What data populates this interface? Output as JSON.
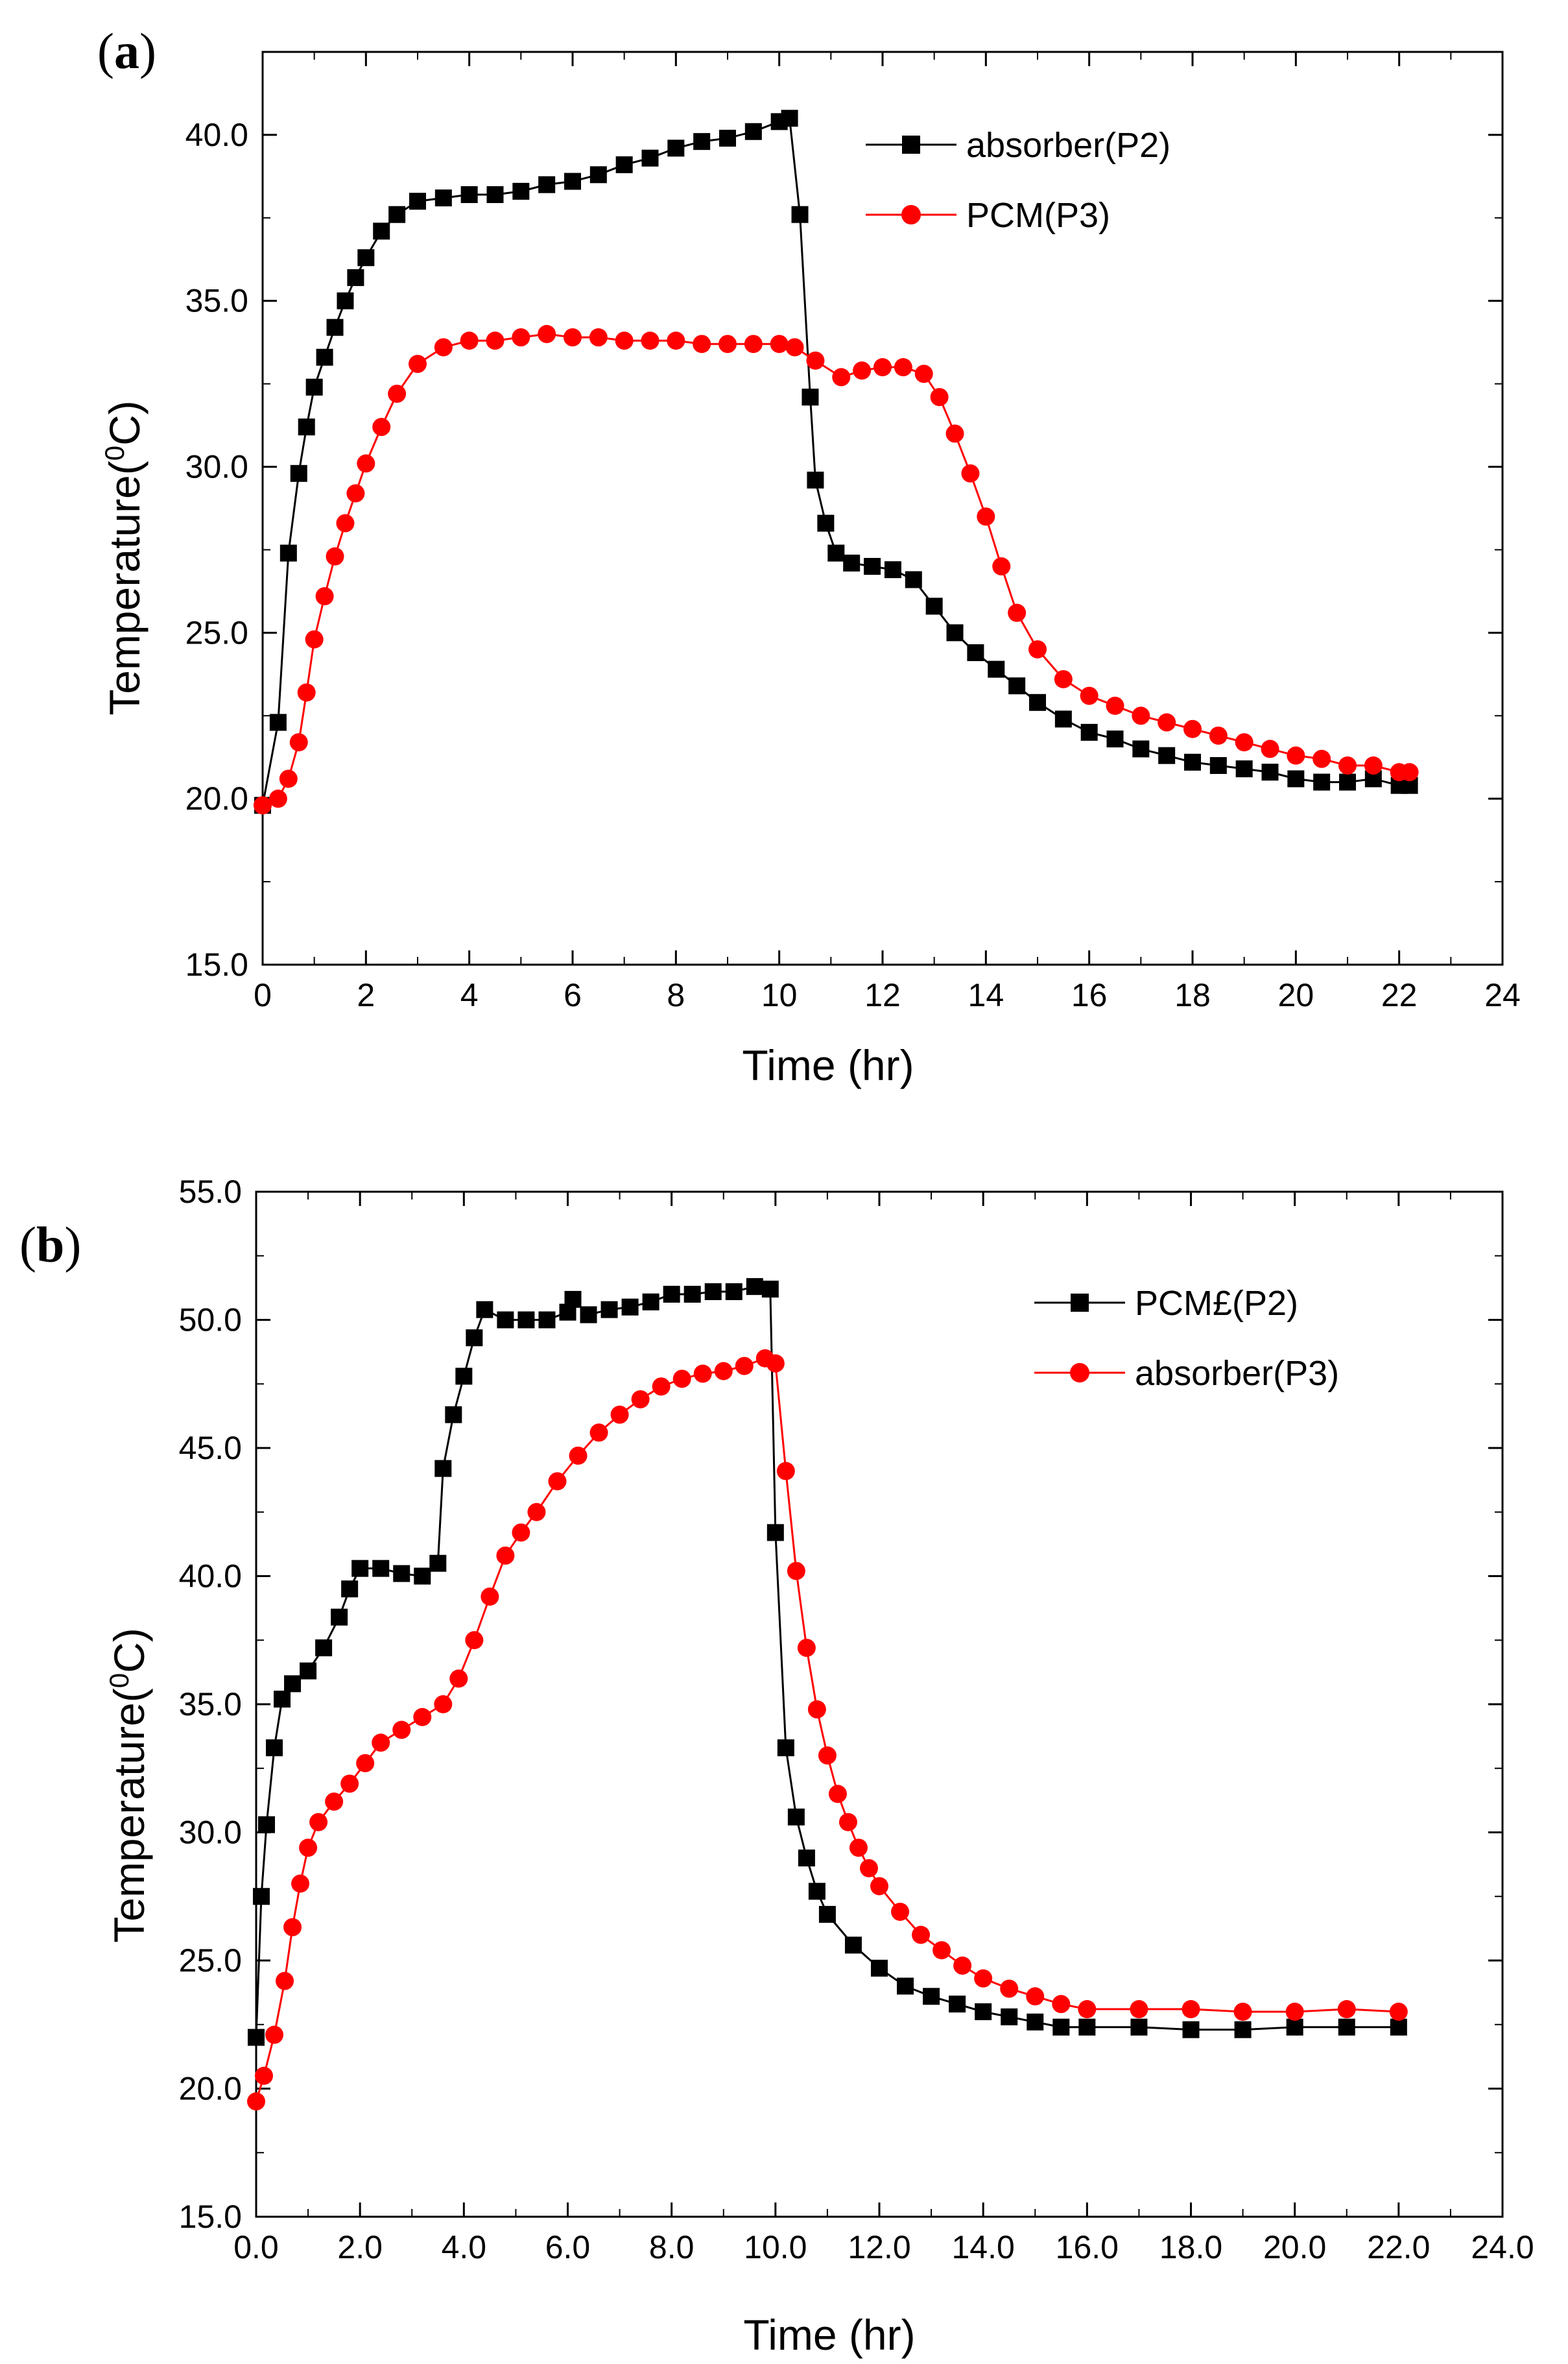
{
  "figure": {
    "colors": {
      "black_series": "#000000",
      "red_series": "#ff0000",
      "axes": "#000000",
      "background": "#ffffff"
    }
  },
  "chart_data": [
    {
      "panel_label": "a",
      "type": "line",
      "markers": [
        "square",
        "circle"
      ],
      "xlabel": "Time (hr)",
      "ylabel": "Temperature(0C)",
      "ylabel_parts": {
        "pre": "Temperature(",
        "sup": "0",
        "post": "C)"
      },
      "xlim": [
        0,
        24
      ],
      "ylim": [
        15,
        42.5
      ],
      "xticks": [
        0,
        2,
        4,
        6,
        8,
        10,
        12,
        14,
        16,
        18,
        20,
        22,
        24
      ],
      "xtick_labels": [
        "0",
        "2",
        "4",
        "6",
        "8",
        "10",
        "12",
        "14",
        "16",
        "18",
        "20",
        "22",
        "24"
      ],
      "yticks": [
        15,
        20,
        25,
        30,
        35,
        40
      ],
      "ytick_labels": [
        "15.0",
        "20.0",
        "25.0",
        "30.0",
        "35.0",
        "40.0"
      ],
      "grid": false,
      "legend_position": "top-right",
      "series": [
        {
          "name": "absorber(P2)",
          "color": "#000000",
          "marker": "square",
          "points": [
            [
              0,
              19.8
            ],
            [
              0.3,
              22.3
            ],
            [
              0.5,
              27.4
            ],
            [
              0.7,
              29.8
            ],
            [
              0.85,
              31.2
            ],
            [
              1.0,
              32.4
            ],
            [
              1.2,
              33.3
            ],
            [
              1.4,
              34.2
            ],
            [
              1.6,
              35
            ],
            [
              1.8,
              35.7
            ],
            [
              2.0,
              36.3
            ],
            [
              2.3,
              37.1
            ],
            [
              2.6,
              37.6
            ],
            [
              3.0,
              38
            ],
            [
              3.5,
              38.1
            ],
            [
              4.0,
              38.2
            ],
            [
              4.5,
              38.2
            ],
            [
              5.0,
              38.3
            ],
            [
              5.5,
              38.5
            ],
            [
              6.0,
              38.6
            ],
            [
              6.5,
              38.8
            ],
            [
              7.0,
              39.1
            ],
            [
              7.5,
              39.3
            ],
            [
              8.0,
              39.6
            ],
            [
              8.5,
              39.8
            ],
            [
              9.0,
              39.9
            ],
            [
              9.5,
              40.1
            ],
            [
              10.0,
              40.4
            ],
            [
              10.2,
              40.5
            ],
            [
              10.4,
              37.6
            ],
            [
              10.6,
              32.1
            ],
            [
              10.7,
              29.6
            ],
            [
              10.9,
              28.3
            ],
            [
              11.1,
              27.4
            ],
            [
              11.4,
              27.1
            ],
            [
              11.8,
              27.0
            ],
            [
              12.2,
              26.9
            ],
            [
              12.6,
              26.6
            ],
            [
              13.0,
              25.8
            ],
            [
              13.4,
              25.0
            ],
            [
              13.8,
              24.4
            ],
            [
              14.2,
              23.9
            ],
            [
              14.6,
              23.4
            ],
            [
              15.0,
              22.9
            ],
            [
              15.5,
              22.4
            ],
            [
              16.0,
              22.0
            ],
            [
              16.5,
              21.8
            ],
            [
              17.0,
              21.5
            ],
            [
              17.5,
              21.3
            ],
            [
              18.0,
              21.1
            ],
            [
              18.5,
              21.0
            ],
            [
              19.0,
              20.9
            ],
            [
              19.5,
              20.8
            ],
            [
              20.0,
              20.6
            ],
            [
              20.5,
              20.5
            ],
            [
              21.0,
              20.5
            ],
            [
              21.5,
              20.6
            ],
            [
              22.0,
              20.4
            ],
            [
              22.2,
              20.4
            ]
          ]
        },
        {
          "name": "PCM(P3)",
          "color": "#ff0000",
          "marker": "circle",
          "points": [
            [
              0,
              19.8
            ],
            [
              0.3,
              20.0
            ],
            [
              0.5,
              20.6
            ],
            [
              0.7,
              21.7
            ],
            [
              0.85,
              23.2
            ],
            [
              1.0,
              24.8
            ],
            [
              1.2,
              26.1
            ],
            [
              1.4,
              27.3
            ],
            [
              1.6,
              28.3
            ],
            [
              1.8,
              29.2
            ],
            [
              2.0,
              30.1
            ],
            [
              2.3,
              31.2
            ],
            [
              2.6,
              32.2
            ],
            [
              3.0,
              33.1
            ],
            [
              3.5,
              33.6
            ],
            [
              4.0,
              33.8
            ],
            [
              4.5,
              33.8
            ],
            [
              5.0,
              33.9
            ],
            [
              5.5,
              34.0
            ],
            [
              6.0,
              33.9
            ],
            [
              6.5,
              33.9
            ],
            [
              7.0,
              33.8
            ],
            [
              7.5,
              33.8
            ],
            [
              8.0,
              33.8
            ],
            [
              8.5,
              33.7
            ],
            [
              9.0,
              33.7
            ],
            [
              9.5,
              33.7
            ],
            [
              10.0,
              33.7
            ],
            [
              10.3,
              33.6
            ],
            [
              10.7,
              33.2
            ],
            [
              11.2,
              32.7
            ],
            [
              11.6,
              32.9
            ],
            [
              12.0,
              33.0
            ],
            [
              12.4,
              33.0
            ],
            [
              12.8,
              32.8
            ],
            [
              13.1,
              32.1
            ],
            [
              13.4,
              31.0
            ],
            [
              13.7,
              29.8
            ],
            [
              14.0,
              28.5
            ],
            [
              14.3,
              27.0
            ],
            [
              14.6,
              25.6
            ],
            [
              15.0,
              24.5
            ],
            [
              15.5,
              23.6
            ],
            [
              16.0,
              23.1
            ],
            [
              16.5,
              22.8
            ],
            [
              17.0,
              22.5
            ],
            [
              17.5,
              22.3
            ],
            [
              18.0,
              22.1
            ],
            [
              18.5,
              21.9
            ],
            [
              19.0,
              21.7
            ],
            [
              19.5,
              21.5
            ],
            [
              20.0,
              21.3
            ],
            [
              20.5,
              21.2
            ],
            [
              21.0,
              21.0
            ],
            [
              21.5,
              21.0
            ],
            [
              22.0,
              20.8
            ],
            [
              22.2,
              20.8
            ]
          ]
        }
      ]
    },
    {
      "panel_label": "b",
      "type": "line",
      "markers": [
        "square",
        "circle"
      ],
      "xlabel": "Time (hr)",
      "ylabel": "Temperature(0C)",
      "ylabel_parts": {
        "pre": "Temperature(",
        "sup": "0",
        "post": "C)"
      },
      "xlim": [
        0,
        24
      ],
      "ylim": [
        15,
        55
      ],
      "xticks": [
        0,
        2,
        4,
        6,
        8,
        10,
        12,
        14,
        16,
        18,
        20,
        22,
        24
      ],
      "xtick_labels": [
        "0.0",
        "2.0",
        "4.0",
        "6.0",
        "8.0",
        "10.0",
        "12.0",
        "14.0",
        "16.0",
        "18.0",
        "20.0",
        "22.0",
        "24.0"
      ],
      "yticks": [
        15,
        20,
        25,
        30,
        35,
        40,
        45,
        50,
        55
      ],
      "ytick_labels": [
        "15.0",
        "20.0",
        "25.0",
        "30.0",
        "35.0",
        "40.0",
        "45.0",
        "50.0",
        "55.0"
      ],
      "grid": false,
      "legend_position": "top-right",
      "series": [
        {
          "name": "PCM£(P2)",
          "color": "#000000",
          "marker": "square",
          "points": [
            [
              0,
              22.0
            ],
            [
              0.1,
              27.5
            ],
            [
              0.2,
              30.3
            ],
            [
              0.35,
              33.3
            ],
            [
              0.5,
              35.2
            ],
            [
              0.7,
              35.8
            ],
            [
              1.0,
              36.3
            ],
            [
              1.3,
              37.2
            ],
            [
              1.6,
              38.4
            ],
            [
              1.8,
              39.5
            ],
            [
              2.0,
              40.3
            ],
            [
              2.4,
              40.3
            ],
            [
              2.8,
              40.1
            ],
            [
              3.2,
              40.0
            ],
            [
              3.5,
              40.5
            ],
            [
              3.6,
              44.2
            ],
            [
              3.8,
              46.3
            ],
            [
              4.0,
              47.8
            ],
            [
              4.2,
              49.3
            ],
            [
              4.4,
              50.4
            ],
            [
              4.8,
              50.0
            ],
            [
              5.2,
              50.0
            ],
            [
              5.6,
              50.0
            ],
            [
              6.0,
              50.3
            ],
            [
              6.1,
              50.8
            ],
            [
              6.4,
              50.2
            ],
            [
              6.8,
              50.4
            ],
            [
              7.2,
              50.5
            ],
            [
              7.6,
              50.7
            ],
            [
              8.0,
              51.0
            ],
            [
              8.4,
              51.0
            ],
            [
              8.8,
              51.1
            ],
            [
              9.2,
              51.1
            ],
            [
              9.6,
              51.3
            ],
            [
              9.9,
              51.2
            ],
            [
              10.0,
              41.7
            ],
            [
              10.2,
              33.3
            ],
            [
              10.4,
              30.6
            ],
            [
              10.6,
              29.0
            ],
            [
              10.8,
              27.7
            ],
            [
              11.0,
              26.8
            ],
            [
              11.5,
              25.6
            ],
            [
              12.0,
              24.7
            ],
            [
              12.5,
              24.0
            ],
            [
              13.0,
              23.6
            ],
            [
              13.5,
              23.3
            ],
            [
              14.0,
              23.0
            ],
            [
              14.5,
              22.8
            ],
            [
              15.0,
              22.6
            ],
            [
              15.5,
              22.4
            ],
            [
              16.0,
              22.4
            ],
            [
              17.0,
              22.4
            ],
            [
              18.0,
              22.3
            ],
            [
              19.0,
              22.3
            ],
            [
              20.0,
              22.4
            ],
            [
              21.0,
              22.4
            ],
            [
              22.0,
              22.4
            ]
          ]
        },
        {
          "name": "absorber(P3)",
          "color": "#ff0000",
          "marker": "circle",
          "points": [
            [
              0,
              19.5
            ],
            [
              0.15,
              20.5
            ],
            [
              0.35,
              22.1
            ],
            [
              0.55,
              24.2
            ],
            [
              0.7,
              26.3
            ],
            [
              0.85,
              28.0
            ],
            [
              1.0,
              29.4
            ],
            [
              1.2,
              30.4
            ],
            [
              1.5,
              31.2
            ],
            [
              1.8,
              31.9
            ],
            [
              2.1,
              32.7
            ],
            [
              2.4,
              33.5
            ],
            [
              2.8,
              34.0
            ],
            [
              3.2,
              34.5
            ],
            [
              3.6,
              35.0
            ],
            [
              3.9,
              36.0
            ],
            [
              4.2,
              37.5
            ],
            [
              4.5,
              39.2
            ],
            [
              4.8,
              40.8
            ],
            [
              5.1,
              41.7
            ],
            [
              5.4,
              42.5
            ],
            [
              5.8,
              43.7
            ],
            [
              6.2,
              44.7
            ],
            [
              6.6,
              45.6
            ],
            [
              7.0,
              46.3
            ],
            [
              7.4,
              46.9
            ],
            [
              7.8,
              47.4
            ],
            [
              8.2,
              47.7
            ],
            [
              8.6,
              47.9
            ],
            [
              9.0,
              48.0
            ],
            [
              9.4,
              48.2
            ],
            [
              9.8,
              48.5
            ],
            [
              10.0,
              48.3
            ],
            [
              10.2,
              44.1
            ],
            [
              10.4,
              40.2
            ],
            [
              10.6,
              37.2
            ],
            [
              10.8,
              34.8
            ],
            [
              11.0,
              33.0
            ],
            [
              11.2,
              31.5
            ],
            [
              11.4,
              30.4
            ],
            [
              11.6,
              29.4
            ],
            [
              11.8,
              28.6
            ],
            [
              12.0,
              27.9
            ],
            [
              12.4,
              26.9
            ],
            [
              12.8,
              26.0
            ],
            [
              13.2,
              25.4
            ],
            [
              13.6,
              24.8
            ],
            [
              14.0,
              24.3
            ],
            [
              14.5,
              23.9
            ],
            [
              15.0,
              23.6
            ],
            [
              15.5,
              23.3
            ],
            [
              16.0,
              23.1
            ],
            [
              17.0,
              23.1
            ],
            [
              18.0,
              23.1
            ],
            [
              19.0,
              23.0
            ],
            [
              20.0,
              23.0
            ],
            [
              21.0,
              23.1
            ],
            [
              22.0,
              23.0
            ]
          ]
        }
      ]
    }
  ]
}
